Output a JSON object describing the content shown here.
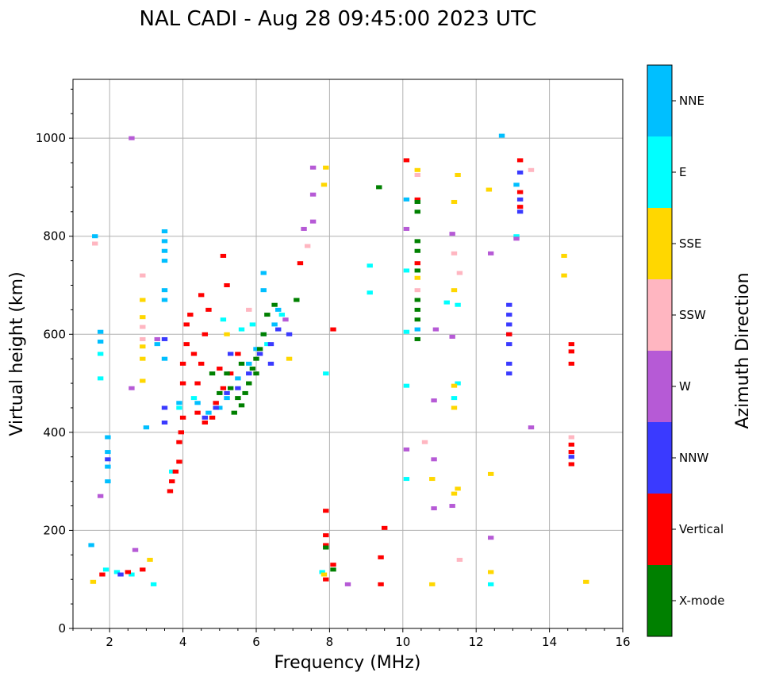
{
  "chart_data": {
    "type": "scatter",
    "title": "NAL CADI - Aug 28 09:45:00 2023 UTC",
    "xlabel": "Frequency (MHz)",
    "ylabel": "Virtual height (km)",
    "xlim": [
      1,
      16
    ],
    "ylim": [
      0,
      1120
    ],
    "xticks": [
      2,
      4,
      6,
      8,
      10,
      12,
      14,
      16
    ],
    "yticks": [
      0,
      200,
      400,
      600,
      800,
      1000
    ],
    "grid": true,
    "colorbar": {
      "label": "Azimuth Direction",
      "placement": "right",
      "categories": [
        {
          "name": "X-mode",
          "color": "#008000"
        },
        {
          "name": "Vertical",
          "color": "#ff0000"
        },
        {
          "name": "NNW",
          "color": "#3a3aff"
        },
        {
          "name": "W",
          "color": "#b65ad6"
        },
        {
          "name": "SSW",
          "color": "#ffb6c1"
        },
        {
          "name": "SSE",
          "color": "#ffd700"
        },
        {
          "name": "E",
          "color": "#00ffff"
        },
        {
          "name": "NNE",
          "color": "#00bfff"
        }
      ]
    },
    "series": [
      {
        "name": "NNE",
        "points": [
          [
            1.6,
            800
          ],
          [
            1.75,
            605
          ],
          [
            1.75,
            585
          ],
          [
            1.95,
            390
          ],
          [
            1.95,
            360
          ],
          [
            1.95,
            330
          ],
          [
            1.95,
            300
          ],
          [
            1.5,
            170
          ],
          [
            3.5,
            810
          ],
          [
            3.5,
            790
          ],
          [
            3.5,
            770
          ],
          [
            3.5,
            750
          ],
          [
            3.5,
            690
          ],
          [
            3.5,
            670
          ],
          [
            3.5,
            550
          ],
          [
            3.3,
            580
          ],
          [
            3.0,
            410
          ],
          [
            3.9,
            460
          ],
          [
            4.4,
            460
          ],
          [
            4.7,
            440
          ],
          [
            5.0,
            450
          ],
          [
            5.2,
            470
          ],
          [
            5.5,
            510
          ],
          [
            5.8,
            540
          ],
          [
            6.0,
            570
          ],
          [
            6.2,
            600
          ],
          [
            6.5,
            620
          ],
          [
            6.2,
            725
          ],
          [
            6.2,
            690
          ],
          [
            6.6,
            650
          ],
          [
            10.4,
            610
          ],
          [
            10.1,
            875
          ],
          [
            12.7,
            1005
          ],
          [
            13.1,
            905
          ]
        ]
      },
      {
        "name": "E",
        "points": [
          [
            1.75,
            510
          ],
          [
            1.75,
            560
          ],
          [
            1.9,
            120
          ],
          [
            2.2,
            115
          ],
          [
            2.6,
            110
          ],
          [
            3.2,
            90
          ],
          [
            3.7,
            320
          ],
          [
            3.9,
            450
          ],
          [
            4.3,
            470
          ],
          [
            5.1,
            630
          ],
          [
            5.6,
            610
          ],
          [
            5.9,
            620
          ],
          [
            6.3,
            580
          ],
          [
            6.7,
            640
          ],
          [
            7.9,
            520
          ],
          [
            9.1,
            740
          ],
          [
            9.1,
            685
          ],
          [
            10.1,
            730
          ],
          [
            10.1,
            605
          ],
          [
            10.1,
            495
          ],
          [
            10.1,
            305
          ],
          [
            11.2,
            665
          ],
          [
            11.5,
            660
          ],
          [
            11.5,
            500
          ],
          [
            11.4,
            470
          ],
          [
            12.4,
            90
          ],
          [
            13.1,
            800
          ],
          [
            7.8,
            115
          ]
        ]
      },
      {
        "name": "SSE",
        "points": [
          [
            1.55,
            95
          ],
          [
            2.9,
            670
          ],
          [
            2.9,
            635
          ],
          [
            2.9,
            575
          ],
          [
            2.9,
            550
          ],
          [
            2.9,
            505
          ],
          [
            3.1,
            140
          ],
          [
            7.9,
            940
          ],
          [
            7.85,
            905
          ],
          [
            7.85,
            110
          ],
          [
            10.4,
            935
          ],
          [
            10.4,
            715
          ],
          [
            11.4,
            870
          ],
          [
            11.5,
            925
          ],
          [
            11.4,
            690
          ],
          [
            11.4,
            495
          ],
          [
            11.4,
            450
          ],
          [
            10.8,
            305
          ],
          [
            11.5,
            285
          ],
          [
            11.4,
            275
          ],
          [
            10.8,
            90
          ],
          [
            12.35,
            895
          ],
          [
            12.4,
            315
          ],
          [
            12.4,
            115
          ],
          [
            14.4,
            760
          ],
          [
            14.4,
            720
          ],
          [
            15.0,
            95
          ],
          [
            5.2,
            600
          ],
          [
            6.9,
            550
          ]
        ]
      },
      {
        "name": "SSW",
        "points": [
          [
            1.6,
            785
          ],
          [
            2.9,
            720
          ],
          [
            2.9,
            615
          ],
          [
            2.9,
            590
          ],
          [
            10.4,
            925
          ],
          [
            10.4,
            690
          ],
          [
            10.6,
            380
          ],
          [
            11.4,
            765
          ],
          [
            11.55,
            725
          ],
          [
            11.55,
            140
          ],
          [
            13.5,
            935
          ],
          [
            14.6,
            390
          ],
          [
            7.4,
            780
          ],
          [
            5.8,
            650
          ]
        ]
      },
      {
        "name": "W",
        "points": [
          [
            2.6,
            1000
          ],
          [
            3.3,
            590
          ],
          [
            2.6,
            490
          ],
          [
            1.75,
            270
          ],
          [
            2.7,
            160
          ],
          [
            7.55,
            940
          ],
          [
            7.55,
            885
          ],
          [
            7.55,
            830
          ],
          [
            7.3,
            815
          ],
          [
            8.5,
            90
          ],
          [
            10.1,
            815
          ],
          [
            10.1,
            365
          ],
          [
            10.9,
            610
          ],
          [
            10.85,
            465
          ],
          [
            10.85,
            345
          ],
          [
            10.85,
            245
          ],
          [
            11.35,
            805
          ],
          [
            11.35,
            595
          ],
          [
            11.35,
            250
          ],
          [
            12.4,
            765
          ],
          [
            12.4,
            185
          ],
          [
            13.5,
            410
          ],
          [
            13.1,
            795
          ],
          [
            6.8,
            630
          ]
        ]
      },
      {
        "name": "NNW",
        "points": [
          [
            1.95,
            345
          ],
          [
            2.3,
            110
          ],
          [
            3.5,
            450
          ],
          [
            3.5,
            420
          ],
          [
            3.5,
            590
          ],
          [
            4.6,
            430
          ],
          [
            4.9,
            450
          ],
          [
            5.2,
            480
          ],
          [
            5.5,
            490
          ],
          [
            5.8,
            520
          ],
          [
            6.1,
            560
          ],
          [
            6.4,
            580
          ],
          [
            6.6,
            610
          ],
          [
            6.9,
            600
          ],
          [
            12.9,
            660
          ],
          [
            12.9,
            640
          ],
          [
            12.9,
            620
          ],
          [
            12.9,
            600
          ],
          [
            12.9,
            580
          ],
          [
            12.9,
            540
          ],
          [
            12.9,
            520
          ],
          [
            13.2,
            930
          ],
          [
            13.2,
            875
          ],
          [
            13.2,
            850
          ],
          [
            14.6,
            350
          ],
          [
            5.3,
            560
          ],
          [
            6.4,
            540
          ]
        ]
      },
      {
        "name": "Vertical",
        "points": [
          [
            1.8,
            110
          ],
          [
            2.5,
            115
          ],
          [
            2.9,
            120
          ],
          [
            3.65,
            280
          ],
          [
            3.7,
            300
          ],
          [
            3.8,
            320
          ],
          [
            3.9,
            340
          ],
          [
            3.9,
            380
          ],
          [
            3.95,
            400
          ],
          [
            4.0,
            430
          ],
          [
            4.0,
            500
          ],
          [
            4.0,
            540
          ],
          [
            4.1,
            580
          ],
          [
            4.1,
            620
          ],
          [
            4.2,
            640
          ],
          [
            4.3,
            560
          ],
          [
            4.4,
            500
          ],
          [
            4.4,
            440
          ],
          [
            4.6,
            420
          ],
          [
            4.8,
            430
          ],
          [
            4.9,
            460
          ],
          [
            5.1,
            490
          ],
          [
            4.5,
            540
          ],
          [
            4.6,
            600
          ],
          [
            4.7,
            650
          ],
          [
            4.5,
            680
          ],
          [
            5.0,
            530
          ],
          [
            5.3,
            520
          ],
          [
            5.5,
            560
          ],
          [
            5.1,
            760
          ],
          [
            5.2,
            700
          ],
          [
            7.2,
            745
          ],
          [
            7.9,
            240
          ],
          [
            7.9,
            190
          ],
          [
            7.9,
            170
          ],
          [
            7.9,
            100
          ],
          [
            8.1,
            610
          ],
          [
            8.1,
            130
          ],
          [
            9.5,
            205
          ],
          [
            9.4,
            145
          ],
          [
            9.4,
            90
          ],
          [
            10.1,
            955
          ],
          [
            10.4,
            875
          ],
          [
            10.4,
            745
          ],
          [
            13.2,
            955
          ],
          [
            13.2,
            890
          ],
          [
            14.6,
            580
          ],
          [
            14.6,
            565
          ],
          [
            14.6,
            540
          ],
          [
            14.6,
            375
          ],
          [
            14.6,
            360
          ],
          [
            14.6,
            335
          ],
          [
            12.9,
            600
          ],
          [
            13.2,
            860
          ]
        ]
      },
      {
        "name": "X-mode",
        "points": [
          [
            5.0,
            480
          ],
          [
            5.3,
            490
          ],
          [
            5.5,
            470
          ],
          [
            5.6,
            455
          ],
          [
            5.8,
            500
          ],
          [
            5.9,
            530
          ],
          [
            6.0,
            550
          ],
          [
            6.1,
            570
          ],
          [
            6.2,
            600
          ],
          [
            6.3,
            640
          ],
          [
            6.5,
            660
          ],
          [
            5.4,
            440
          ],
          [
            5.7,
            480
          ],
          [
            6.0,
            520
          ],
          [
            5.2,
            520
          ],
          [
            5.6,
            540
          ],
          [
            7.1,
            670
          ],
          [
            7.9,
            165
          ],
          [
            8.1,
            120
          ],
          [
            9.35,
            900
          ],
          [
            10.4,
            870
          ],
          [
            10.4,
            850
          ],
          [
            10.4,
            790
          ],
          [
            10.4,
            770
          ],
          [
            10.4,
            730
          ],
          [
            10.4,
            670
          ],
          [
            10.4,
            650
          ],
          [
            10.4,
            630
          ],
          [
            10.4,
            590
          ],
          [
            4.8,
            520
          ]
        ]
      }
    ]
  }
}
